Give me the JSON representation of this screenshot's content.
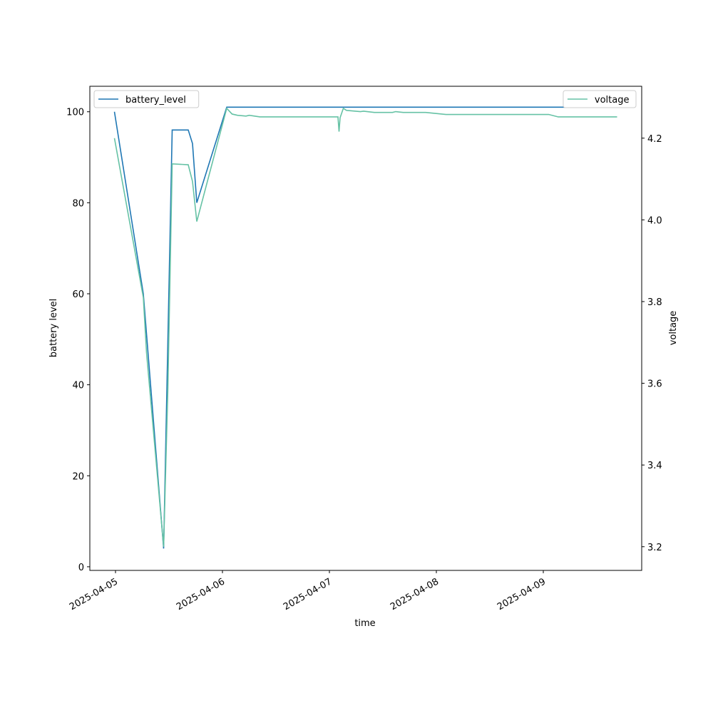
{
  "chart_data": {
    "type": "line",
    "x_label": "time",
    "y_label": "battery level",
    "y2_label": "voltage",
    "xlim": [
      20182.76,
      20187.92
    ],
    "xticks": [
      {
        "value": 20183,
        "label": "2025-04-05"
      },
      {
        "value": 20184,
        "label": "2025-04-06"
      },
      {
        "value": 20185,
        "label": "2025-04-07"
      },
      {
        "value": 20186,
        "label": "2025-04-08"
      },
      {
        "value": 20187,
        "label": "2025-04-09"
      }
    ],
    "ylim": [
      -0.8,
      105.6
    ],
    "yticks": [
      0,
      20,
      40,
      60,
      80,
      100
    ],
    "y2lim": [
      3.142,
      4.327
    ],
    "y2ticks": [
      3.2,
      3.4,
      3.6,
      3.8,
      {
        "value": 4,
        "label": "4.0"
      },
      4.2
    ],
    "grid": false,
    "series": [
      {
        "name": "battery_level",
        "color": "#1f77b4",
        "legend": "upper left",
        "x": [
          20182.99,
          20183.26,
          20183.45,
          20183.53,
          20183.68,
          20183.72,
          20183.76,
          20184.04,
          20187.69
        ],
        "values": [
          100,
          60,
          4,
          96,
          96,
          93,
          80,
          101,
          101
        ]
      },
      {
        "name": "voltage",
        "color": "#66c2a5",
        "axis": "y2",
        "legend": "upper right",
        "x": [
          20182.99,
          20183.26,
          20183.29,
          20183.45,
          20183.49,
          20183.53,
          20183.68,
          20183.72,
          20183.76,
          20184.04,
          20184.09,
          20184.14,
          20184.22,
          20184.25,
          20184.35,
          20185.08,
          20185.09,
          20185.1,
          20185.13,
          20185.16,
          20185.29,
          20185.32,
          20185.42,
          20185.59,
          20185.62,
          20185.69,
          20185.9,
          20186.09,
          20187.05,
          20187.14,
          20187.69
        ],
        "values": [
          4.2,
          3.81,
          3.675,
          3.2,
          3.59,
          4.137,
          4.135,
          4.094,
          3.996,
          4.273,
          4.259,
          4.256,
          4.254,
          4.256,
          4.252,
          4.252,
          4.216,
          4.25,
          4.273,
          4.268,
          4.265,
          4.266,
          4.263,
          4.263,
          4.265,
          4.263,
          4.263,
          4.258,
          4.258,
          4.252,
          4.252
        ]
      }
    ]
  }
}
